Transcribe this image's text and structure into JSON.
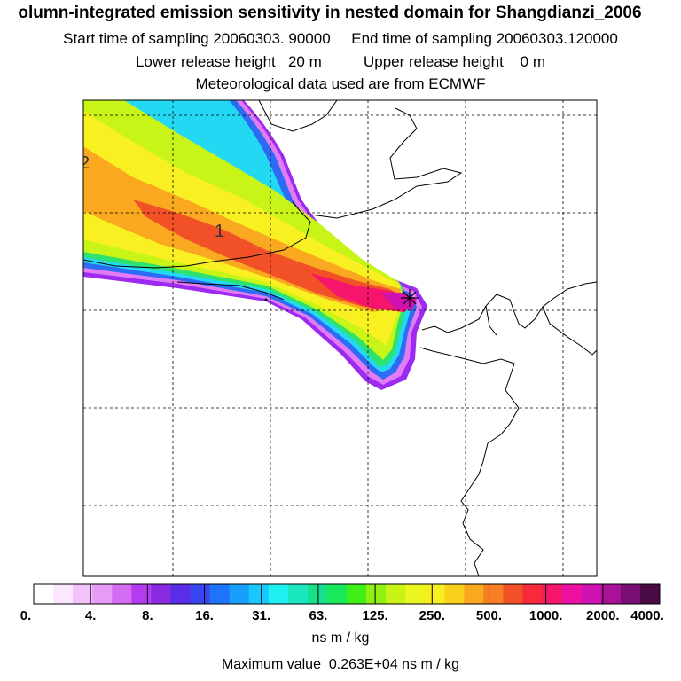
{
  "header": {
    "title": "olumn-integrated emission sensitivity in nested domain for Shangdianzi_2006",
    "line2": "Start time of sampling 20060303. 90000     End time of sampling 20060303.120000",
    "line3": "Lower release height   20 m          Upper release height    0 m",
    "line4": "Meteorological data used are from ECMWF"
  },
  "map": {
    "contour_labels": [
      "2",
      "1"
    ],
    "receptor_marker": "star-marker"
  },
  "colorbar": {
    "tick_labels": [
      "0.",
      "4.",
      "8.",
      "16.",
      "31.",
      "63.",
      "125.",
      "250.",
      "500.",
      "1000.",
      "2000.",
      "4000."
    ],
    "colors": [
      "#ffffff",
      "#fde6ff",
      "#f2c2fb",
      "#e79af7",
      "#d56df2",
      "#b43cf0",
      "#8a2be2",
      "#5a2ee6",
      "#3846f2",
      "#1f73f7",
      "#189ffb",
      "#18c8fc",
      "#1ef0f2",
      "#1ae6c0",
      "#16e08c",
      "#18e85a",
      "#40ef18",
      "#8ff012",
      "#c8f415",
      "#eaf61d",
      "#f8ef20",
      "#fbd01b",
      "#f9a81f",
      "#f67f24",
      "#f25128",
      "#f62a3a",
      "#f5156a",
      "#ee10a0",
      "#d012b2",
      "#a81298",
      "#7a0e72",
      "#4a0a44"
    ],
    "units": "ns m / kg",
    "maximum": "Maximum value  0.263E+04 ns m / kg"
  }
}
